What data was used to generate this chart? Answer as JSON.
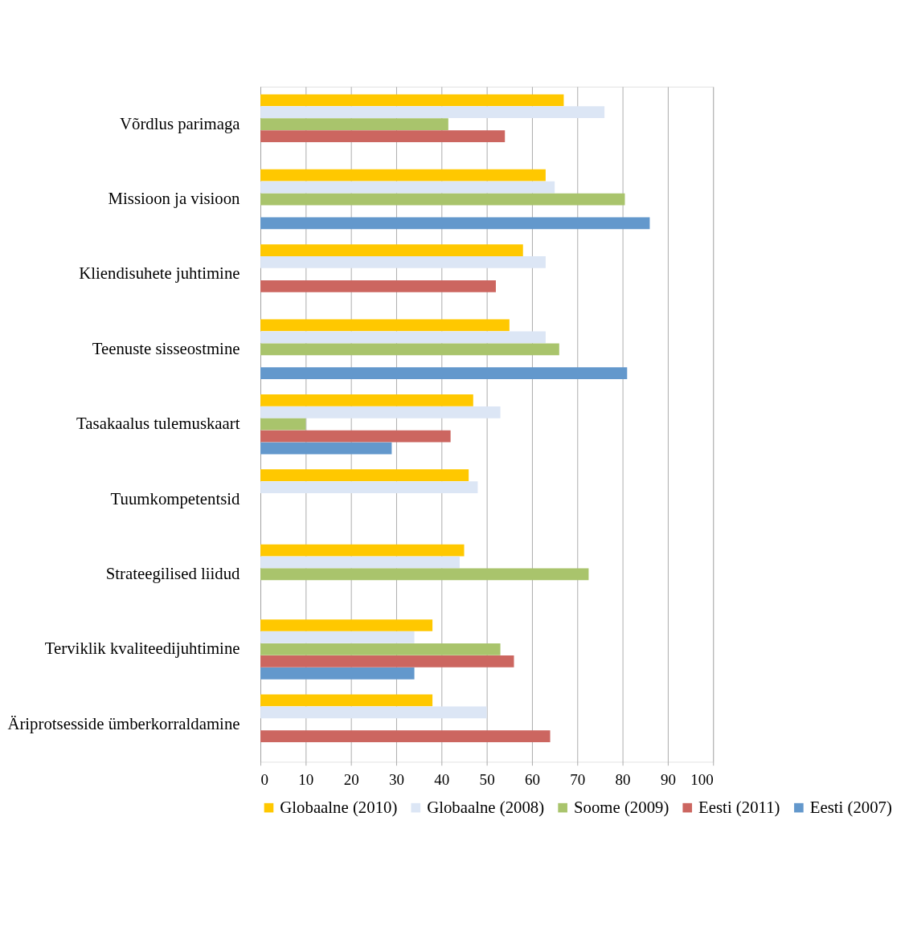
{
  "chart_data": {
    "type": "bar",
    "orientation": "horizontal",
    "categories": [
      "Võrdlus parimaga",
      "Missioon ja visioon",
      "Kliendisuhete juhtimine",
      "Teenuste sisseostmine",
      "Tasakaalus tulemuskaart",
      "Tuumkompetentsid",
      "Strateegilised liidud",
      "Terviklik kvaliteedijuhtimine",
      "Äriprotsesside ümberkorraldamine"
    ],
    "series": [
      {
        "name": "Globaalne (2010)",
        "color": "#ffc800",
        "values": [
          67,
          63,
          58,
          55,
          47,
          46,
          45,
          38,
          38
        ]
      },
      {
        "name": "Globaalne (2008)",
        "color": "#dce6f5",
        "values": [
          76,
          65,
          63,
          63,
          53,
          48,
          44,
          34,
          50
        ]
      },
      {
        "name": "Soome (2009)",
        "color": "#a9c46c",
        "values": [
          41.5,
          80.5,
          null,
          66,
          10,
          null,
          72.5,
          53,
          null
        ]
      },
      {
        "name": "Eesti (2011)",
        "color": "#cc6660",
        "values": [
          54,
          null,
          52,
          null,
          42,
          null,
          null,
          56,
          64
        ]
      },
      {
        "name": "Eesti (2007)",
        "color": "#6398cc",
        "values": [
          null,
          86,
          null,
          81,
          29,
          null,
          null,
          34,
          null
        ]
      }
    ],
    "xlim": [
      0,
      100
    ],
    "xticks": [
      0,
      10,
      20,
      30,
      40,
      50,
      60,
      70,
      80,
      90,
      100
    ],
    "grid": "x",
    "legend": "bottom"
  }
}
